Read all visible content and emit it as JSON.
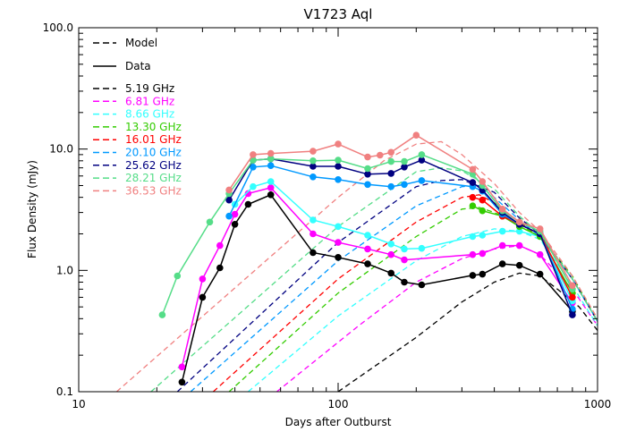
{
  "chart_data": {
    "type": "line",
    "title": "V1723 Aql",
    "xlabel": "Days after Outburst",
    "ylabel": "Flux Density (mJy)",
    "x_scale": "log",
    "y_scale": "log",
    "xlim": [
      10,
      1000
    ],
    "ylim": [
      0.1,
      100
    ],
    "x_ticks": [
      10,
      100,
      1000
    ],
    "x_tick_labels": [
      "10",
      "100",
      "1000"
    ],
    "y_ticks": [
      0.1,
      1,
      10,
      100
    ],
    "y_tick_labels": [
      "0.1",
      "1.0",
      "10.0",
      "100.0"
    ],
    "legend": {
      "position": "top-left",
      "style_entries": [
        {
          "label": "Model",
          "style": "dashed",
          "color": "#000000"
        },
        {
          "label": "Data",
          "style": "solid",
          "color": "#000000"
        }
      ]
    },
    "series": [
      {
        "name": "5.19 GHz",
        "color": "#000000",
        "data": [
          [
            25,
            0.12
          ],
          [
            30,
            0.6
          ],
          [
            35,
            1.05
          ],
          [
            40,
            2.4
          ],
          [
            45,
            3.5
          ],
          [
            55,
            4.2
          ],
          [
            80,
            1.4
          ],
          [
            100,
            1.28
          ],
          [
            130,
            1.13
          ],
          [
            160,
            0.95
          ],
          [
            180,
            0.8
          ],
          [
            210,
            0.76
          ],
          [
            330,
            0.91
          ],
          [
            360,
            0.93
          ],
          [
            430,
            1.13
          ],
          [
            500,
            1.1
          ],
          [
            600,
            0.93
          ],
          [
            800,
            0.46
          ]
        ],
        "model": [
          [
            100,
            0.1
          ],
          [
            200,
            0.28
          ],
          [
            300,
            0.55
          ],
          [
            400,
            0.8
          ],
          [
            500,
            0.95
          ],
          [
            600,
            0.9
          ],
          [
            700,
            0.7
          ],
          [
            850,
            0.5
          ],
          [
            1000,
            0.32
          ]
        ]
      },
      {
        "name": "6.81 GHz",
        "color": "#ff00ff",
        "data": [
          [
            25,
            0.16
          ],
          [
            30,
            0.85
          ],
          [
            35,
            1.6
          ],
          [
            40,
            2.9
          ],
          [
            45,
            4.3
          ],
          [
            55,
            4.8
          ],
          [
            80,
            2.0
          ],
          [
            100,
            1.7
          ],
          [
            130,
            1.5
          ],
          [
            160,
            1.35
          ],
          [
            180,
            1.22
          ],
          [
            330,
            1.35
          ],
          [
            360,
            1.38
          ],
          [
            430,
            1.6
          ],
          [
            500,
            1.6
          ],
          [
            600,
            1.35
          ],
          [
            800,
            0.54
          ]
        ],
        "model": [
          [
            58,
            0.1
          ],
          [
            120,
            0.35
          ],
          [
            200,
            0.8
          ],
          [
            300,
            1.25
          ],
          [
            400,
            1.5
          ],
          [
            500,
            1.6
          ],
          [
            600,
            1.35
          ],
          [
            800,
            0.7
          ],
          [
            1000,
            0.35
          ]
        ]
      },
      {
        "name": "8.66 GHz",
        "color": "#33ffff",
        "data": [
          [
            40,
            3.5
          ],
          [
            47,
            4.9
          ],
          [
            55,
            5.4
          ],
          [
            80,
            2.6
          ],
          [
            100,
            2.3
          ],
          [
            130,
            1.95
          ],
          [
            160,
            1.65
          ],
          [
            180,
            1.5
          ],
          [
            210,
            1.52
          ],
          [
            330,
            1.9
          ],
          [
            360,
            1.95
          ],
          [
            430,
            2.1
          ],
          [
            500,
            2.1
          ],
          [
            600,
            1.9
          ],
          [
            800,
            0.56
          ]
        ],
        "model": [
          [
            45,
            0.1
          ],
          [
            100,
            0.42
          ],
          [
            200,
            1.2
          ],
          [
            300,
            1.9
          ],
          [
            400,
            2.2
          ],
          [
            500,
            2.1
          ],
          [
            600,
            1.8
          ],
          [
            800,
            0.75
          ],
          [
            1000,
            0.35
          ]
        ]
      },
      {
        "name": "13.30 GHz",
        "color": "#33cc00",
        "data": [
          [
            330,
            3.4
          ],
          [
            360,
            3.1
          ],
          [
            430,
            2.8
          ],
          [
            500,
            2.3
          ],
          [
            600,
            1.9
          ],
          [
            800,
            0.65
          ]
        ],
        "model": [
          [
            38,
            0.1
          ],
          [
            100,
            0.65
          ],
          [
            200,
            1.9
          ],
          [
            300,
            3.2
          ],
          [
            350,
            3.3
          ],
          [
            400,
            3.0
          ],
          [
            500,
            2.4
          ],
          [
            600,
            1.9
          ],
          [
            800,
            0.9
          ],
          [
            1000,
            0.38
          ]
        ]
      },
      {
        "name": "16.01 GHz",
        "color": "#ff0000",
        "data": [
          [
            330,
            4.0
          ],
          [
            360,
            3.8
          ],
          [
            430,
            2.8
          ],
          [
            500,
            2.4
          ],
          [
            600,
            2.0
          ],
          [
            800,
            0.6
          ]
        ],
        "model": [
          [
            33,
            0.1
          ],
          [
            100,
            0.85
          ],
          [
            200,
            2.5
          ],
          [
            300,
            4.0
          ],
          [
            350,
            4.2
          ],
          [
            400,
            3.6
          ],
          [
            500,
            2.5
          ],
          [
            600,
            1.9
          ],
          [
            800,
            0.85
          ],
          [
            1000,
            0.38
          ]
        ]
      },
      {
        "name": "20.10 GHz",
        "color": "#0099ff",
        "data": [
          [
            38,
            2.8
          ],
          [
            47,
            7.1
          ],
          [
            55,
            7.3
          ],
          [
            80,
            5.9
          ],
          [
            100,
            5.6
          ],
          [
            130,
            5.1
          ],
          [
            160,
            4.9
          ],
          [
            180,
            5.1
          ],
          [
            210,
            5.5
          ],
          [
            330,
            4.9
          ],
          [
            360,
            4.5
          ],
          [
            430,
            2.9
          ],
          [
            500,
            2.4
          ],
          [
            600,
            2.0
          ],
          [
            800,
            0.48
          ]
        ],
        "model": [
          [
            27,
            0.1
          ],
          [
            100,
            1.2
          ],
          [
            200,
            3.4
          ],
          [
            300,
            4.9
          ],
          [
            350,
            5.0
          ],
          [
            400,
            4.0
          ],
          [
            500,
            2.6
          ],
          [
            600,
            1.9
          ],
          [
            800,
            0.85
          ],
          [
            1000,
            0.38
          ]
        ]
      },
      {
        "name": "25.62 GHz",
        "color": "#000080",
        "data": [
          [
            38,
            3.8
          ],
          [
            47,
            8.1
          ],
          [
            55,
            8.3
          ],
          [
            80,
            7.2
          ],
          [
            100,
            7.2
          ],
          [
            130,
            6.2
          ],
          [
            160,
            6.3
          ],
          [
            180,
            7.1
          ],
          [
            210,
            8.1
          ],
          [
            330,
            5.3
          ],
          [
            360,
            4.6
          ],
          [
            430,
            3.0
          ],
          [
            500,
            2.4
          ],
          [
            600,
            2.0
          ],
          [
            800,
            0.43
          ]
        ],
        "model": [
          [
            24,
            0.1
          ],
          [
            100,
            1.7
          ],
          [
            200,
            4.9
          ],
          [
            250,
            5.5
          ],
          [
            300,
            5.6
          ],
          [
            400,
            4.4
          ],
          [
            500,
            2.7
          ],
          [
            600,
            2.0
          ],
          [
            800,
            0.85
          ],
          [
            1000,
            0.38
          ]
        ]
      },
      {
        "name": "28.21 GHz",
        "color": "#55dd88",
        "data": [
          [
            21,
            0.43
          ],
          [
            24,
            0.9
          ],
          [
            32,
            2.5
          ],
          [
            38,
            4.3
          ],
          [
            47,
            8.1
          ],
          [
            55,
            8.3
          ],
          [
            80,
            8.0
          ],
          [
            100,
            8.1
          ],
          [
            130,
            6.9
          ],
          [
            160,
            7.9
          ],
          [
            180,
            7.9
          ],
          [
            210,
            9.0
          ],
          [
            330,
            6.2
          ],
          [
            360,
            5.0
          ],
          [
            430,
            3.1
          ],
          [
            500,
            2.5
          ],
          [
            600,
            2.1
          ],
          [
            800,
            0.7
          ]
        ],
        "model": [
          [
            19,
            0.1
          ],
          [
            100,
            2.3
          ],
          [
            200,
            6.5
          ],
          [
            250,
            7.0
          ],
          [
            300,
            6.6
          ],
          [
            400,
            4.7
          ],
          [
            500,
            2.8
          ],
          [
            600,
            2.0
          ],
          [
            800,
            0.85
          ],
          [
            1000,
            0.38
          ]
        ]
      },
      {
        "name": "36.53 GHz",
        "color": "#f08080",
        "data": [
          [
            38,
            4.6
          ],
          [
            47,
            9.0
          ],
          [
            55,
            9.2
          ],
          [
            80,
            9.6
          ],
          [
            100,
            11.0
          ],
          [
            130,
            8.6
          ],
          [
            145,
            8.9
          ],
          [
            160,
            9.4
          ],
          [
            200,
            13.0
          ],
          [
            330,
            6.8
          ],
          [
            360,
            5.4
          ],
          [
            430,
            3.2
          ],
          [
            500,
            2.5
          ],
          [
            600,
            2.2
          ],
          [
            800,
            0.75
          ]
        ],
        "model": [
          [
            14,
            0.1
          ],
          [
            100,
            4.0
          ],
          [
            150,
            8.0
          ],
          [
            200,
            11.0
          ],
          [
            250,
            11.5
          ],
          [
            300,
            9.0
          ],
          [
            400,
            5.2
          ],
          [
            500,
            3.0
          ],
          [
            600,
            2.1
          ],
          [
            800,
            0.9
          ],
          [
            1000,
            0.4
          ]
        ]
      }
    ]
  }
}
